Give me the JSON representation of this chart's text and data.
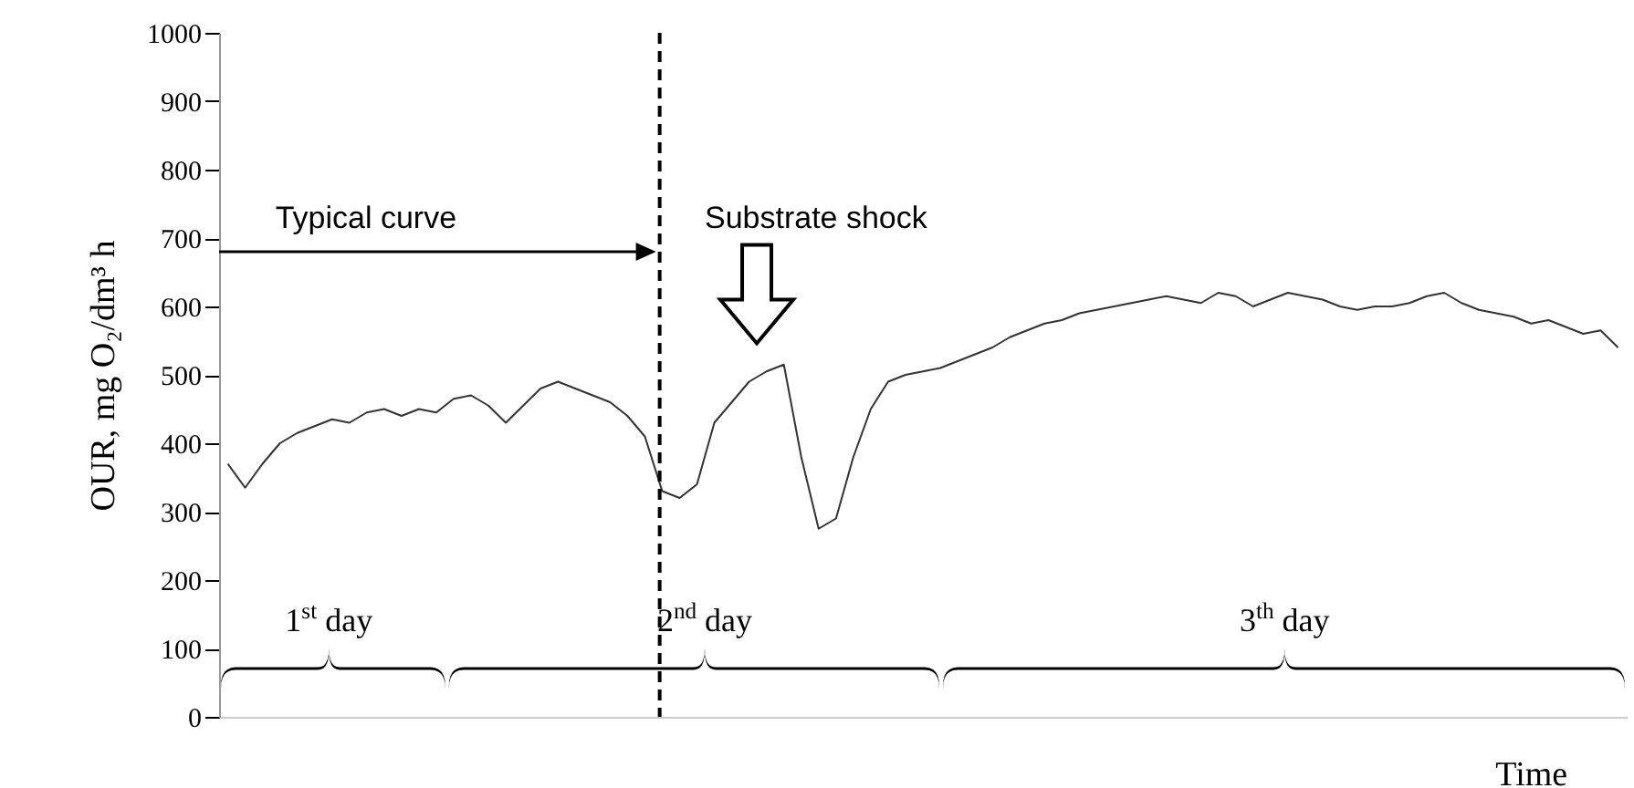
{
  "chart_data": {
    "type": "line",
    "ylabel": "OUR, mg O₂/dm³ h",
    "categories": [
      null,
      null,
      null,
      null,
      null,
      null,
      null,
      null,
      null,
      null,
      null,
      null,
      null,
      null,
      null,
      null,
      null,
      null,
      null,
      null,
      null,
      null,
      null,
      null,
      null,
      null,
      null,
      null,
      null,
      null,
      null,
      null,
      null,
      null,
      null,
      null,
      null,
      null,
      null,
      null,
      null,
      null,
      null,
      null,
      null,
      null,
      null,
      null,
      null,
      null,
      null,
      null,
      null,
      null,
      null,
      null,
      null,
      null,
      null,
      null,
      null,
      null,
      null,
      null,
      null,
      null,
      null,
      null,
      null,
      null,
      null,
      null,
      null,
      null,
      null,
      null,
      null,
      null,
      null,
      null,
      null
    ],
    "series": [
      {
        "color": "#333333",
        "values": [
          370,
          335,
          370,
          400,
          415,
          425,
          435,
          430,
          445,
          450,
          440,
          450,
          445,
          465,
          470,
          455,
          430,
          455,
          480,
          490,
          480,
          470,
          460,
          440,
          410,
          330,
          320,
          340,
          430,
          460,
          490,
          505,
          515,
          380,
          275,
          290,
          380,
          450,
          490,
          500,
          505,
          510,
          520,
          530,
          540,
          555,
          565,
          575,
          580,
          590,
          595,
          600,
          605,
          610,
          615,
          610,
          605,
          620,
          615,
          600,
          610,
          620,
          615,
          610,
          600,
          595,
          600,
          600,
          605,
          615,
          620,
          605,
          595,
          590,
          585,
          575,
          580,
          570,
          560,
          565,
          540
        ]
      }
    ],
    "ylim": [
      0,
      1000
    ],
    "yticks": [
      0,
      100,
      200,
      300,
      400,
      500,
      600,
      700,
      800,
      900,
      1000
    ],
    "tick_labels": "y",
    "annotations": [
      "Typical curve",
      "Substrate shock",
      "1$^{st}$ day",
      "2$^{nd}$ day",
      "3$^{th}$ day",
      "Time"
    ]
  }
}
